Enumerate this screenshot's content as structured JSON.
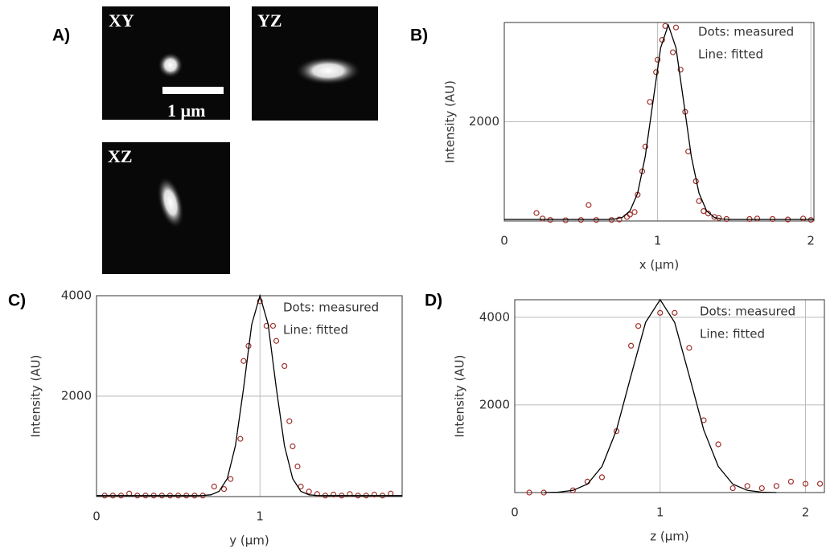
{
  "panel_a": {
    "label": "A)",
    "images": [
      "XY",
      "YZ",
      "XZ"
    ],
    "scale_bar": "1 µm"
  },
  "chart_data": [
    {
      "type": "line",
      "label": "B)",
      "xlabel": "x (µm)",
      "ylabel": "Intensity (AU)",
      "annotations": [
        "Dots: measured",
        "Line: fitted"
      ],
      "xlim": [
        0,
        2.02
      ],
      "ylim": [
        0,
        4000
      ],
      "xticks": [
        0,
        1,
        2
      ],
      "yticks": [
        2000
      ],
      "grid": true,
      "series": [
        {
          "mode": "dots",
          "color": "#a0302a",
          "x": [
            0.21,
            0.25,
            0.3,
            0.4,
            0.5,
            0.55,
            0.6,
            0.7,
            0.75,
            0.8,
            0.82,
            0.85,
            0.87,
            0.9,
            0.92,
            0.95,
            0.99,
            1.0,
            1.03,
            1.05,
            1.1,
            1.12,
            1.15,
            1.18,
            1.2,
            1.25,
            1.27,
            1.3,
            1.33,
            1.37,
            1.4,
            1.45,
            1.6,
            1.65,
            1.75,
            1.85,
            1.95,
            2.0
          ],
          "values": [
            160,
            50,
            20,
            15,
            20,
            320,
            20,
            20,
            30,
            80,
            130,
            180,
            530,
            1000,
            1500,
            2400,
            3000,
            3250,
            3650,
            3930,
            3400,
            3900,
            3050,
            2200,
            1400,
            800,
            400,
            200,
            150,
            80,
            60,
            40,
            40,
            50,
            40,
            30,
            50,
            20
          ]
        },
        {
          "mode": "line",
          "color": "#000000",
          "x": [
            0,
            0.67,
            0.72,
            0.77,
            0.82,
            0.87,
            0.92,
            0.97,
            1.02,
            1.07,
            1.12,
            1.17,
            1.22,
            1.27,
            1.32,
            1.37,
            1.42,
            1.47,
            2.02
          ],
          "values": [
            30,
            31,
            39,
            73,
            202,
            560,
            1303,
            2407,
            3490,
            3950,
            3490,
            2407,
            1303,
            560,
            202,
            73,
            39,
            31,
            30
          ]
        }
      ]
    },
    {
      "type": "line",
      "label": "C)",
      "xlabel": "y (µm)",
      "ylabel": "Intensity (AU)",
      "annotations": [
        "Dots: measured",
        "Line: fitted"
      ],
      "xlim": [
        0,
        1.87
      ],
      "ylim": [
        0,
        4000
      ],
      "xticks": [
        0,
        1
      ],
      "yticks": [
        2000,
        4000
      ],
      "grid": true,
      "series": [
        {
          "mode": "dots",
          "color": "#a0302a",
          "x": [
            0.05,
            0.1,
            0.15,
            0.2,
            0.25,
            0.3,
            0.35,
            0.4,
            0.45,
            0.5,
            0.55,
            0.6,
            0.65,
            0.72,
            0.78,
            0.82,
            0.88,
            0.9,
            0.93,
            1.0,
            1.04,
            1.08,
            1.1,
            1.15,
            1.18,
            1.2,
            1.23,
            1.25,
            1.3,
            1.35,
            1.4,
            1.45,
            1.5,
            1.55,
            1.6,
            1.65,
            1.7,
            1.75,
            1.8
          ],
          "values": [
            20,
            20,
            20,
            60,
            20,
            20,
            20,
            20,
            20,
            20,
            20,
            20,
            20,
            200,
            150,
            350,
            1150,
            2700,
            3000,
            3890,
            3400,
            3400,
            3100,
            2600,
            1500,
            1000,
            600,
            200,
            100,
            50,
            20,
            40,
            20,
            50,
            20,
            20,
            40,
            20,
            60
          ]
        },
        {
          "mode": "line",
          "color": "#000000",
          "x": [
            0,
            0.6,
            0.65,
            0.7,
            0.75,
            0.8,
            0.85,
            0.9,
            0.95,
            1.0,
            1.05,
            1.1,
            1.15,
            1.2,
            1.25,
            1.3,
            1.35,
            1.4,
            1.87
          ],
          "values": [
            20,
            20,
            22,
            36,
            104,
            358,
            1011,
            2165,
            3431,
            4000,
            3431,
            2165,
            1011,
            358,
            104,
            36,
            22,
            20,
            20
          ]
        }
      ]
    },
    {
      "type": "line",
      "label": "D)",
      "xlabel": "z (µm)",
      "ylabel": "Intensity (AU)",
      "annotations": [
        "Dots: measured",
        "Line: fitted"
      ],
      "xlim": [
        0,
        2.13
      ],
      "ylim": [
        0,
        4400
      ],
      "xticks": [
        0,
        1,
        2
      ],
      "yticks": [
        2000,
        4000
      ],
      "grid": true,
      "series": [
        {
          "mode": "dots",
          "color": "#a0302a",
          "x": [
            0.1,
            0.2,
            0.4,
            0.5,
            0.6,
            0.7,
            0.8,
            0.85,
            1.0,
            1.1,
            1.2,
            1.3,
            1.4,
            1.5,
            1.6,
            1.7,
            1.8,
            1.9,
            2.0,
            2.1
          ],
          "values": [
            0,
            0,
            50,
            250,
            350,
            1400,
            3350,
            3800,
            4100,
            4100,
            3300,
            1650,
            1100,
            100,
            150,
            100,
            150,
            250,
            200,
            200
          ]
        },
        {
          "mode": "line",
          "color": "#000000",
          "x": [
            0.2,
            0.3,
            0.4,
            0.5,
            0.6,
            0.7,
            0.8,
            0.9,
            1.0,
            1.1,
            1.2,
            1.3,
            1.4,
            1.5,
            1.6,
            1.7,
            1.8
          ],
          "values": [
            0,
            10,
            49,
            193,
            595,
            1429,
            2669,
            3883,
            4400,
            3883,
            2669,
            1429,
            595,
            193,
            49,
            10,
            0
          ]
        }
      ]
    }
  ]
}
